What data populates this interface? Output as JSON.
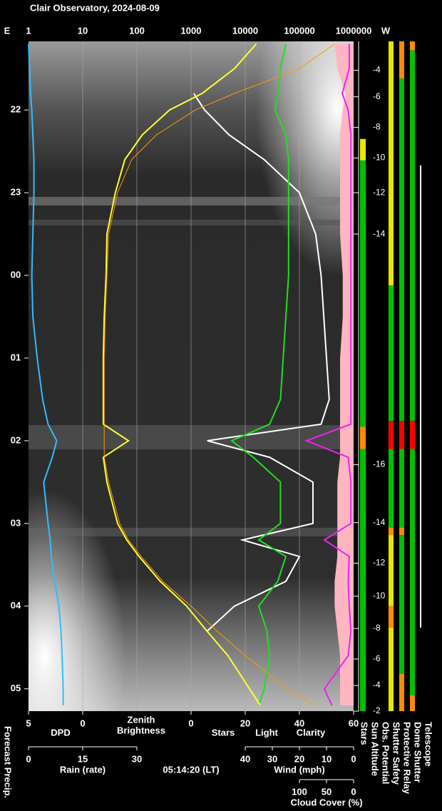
{
  "title": "Clair Observatory, 2024-08-09",
  "chart_data": {
    "type": "keogram",
    "east_label": "E",
    "west_label": "W",
    "log_x": true,
    "grid": true,
    "xlim": [
      1,
      1000000
    ],
    "xticks": [
      1,
      10,
      100,
      1000,
      10000,
      100000,
      1000000
    ],
    "ylim": [
      21.17,
      29.27
    ],
    "yticks": [
      22,
      23,
      {
        "value": 24,
        "label": "00"
      },
      {
        "value": 25,
        "label": "01"
      },
      {
        "value": 26,
        "label": "02"
      },
      {
        "value": 27,
        "label": "03"
      },
      {
        "value": 28,
        "label": "04"
      },
      {
        "value": 29,
        "label": "05"
      }
    ],
    "x": [
      21.2,
      21.5,
      21.8,
      22.0,
      22.3,
      22.6,
      23.0,
      23.5,
      24.0,
      24.5,
      25.0,
      25.5,
      25.8,
      26.0,
      26.2,
      26.5,
      27.0,
      27.2,
      27.4,
      27.7,
      28.0,
      28.3,
      28.6,
      29.0,
      29.2
    ],
    "series": [
      {
        "name": "Stars",
        "color": "#ffffff",
        "axis": "stars",
        "values": [
          null,
          null,
          1,
          5,
          14,
          27,
          40,
          46,
          48,
          49,
          50,
          51,
          48,
          6,
          29,
          45,
          45,
          19,
          40,
          35,
          16,
          6,
          null,
          null,
          null
        ]
      },
      {
        "name": "Clarity",
        "color": "#22dd22",
        "axis": "stars",
        "values": [
          35,
          33,
          32,
          31,
          35,
          36,
          36,
          36,
          36,
          35,
          34,
          33,
          29,
          15,
          23,
          33,
          33,
          25,
          35,
          32,
          25,
          28,
          29,
          27,
          25
        ]
      },
      {
        "name": "Light",
        "color": "#ffff33",
        "axis": "top",
        "values": [
          16000,
          6300,
          1600,
          400,
          126,
          60,
          40,
          28,
          27,
          25,
          24,
          24,
          24,
          70,
          24,
          28,
          44,
          65,
          110,
          270,
          830,
          1960,
          4800,
          12000,
          19000
        ]
      },
      {
        "color": "#ff9900",
        "axis": "top",
        "values": [
          450000,
          100000,
          6300,
          1200,
          230,
          80,
          44,
          30,
          28,
          26,
          25,
          25,
          25,
          25,
          25,
          30,
          48,
          70,
          120,
          300,
          1000,
          3000,
          10000,
          60000,
          200000
        ]
      },
      {
        "name": "DPD",
        "color": "#33bbff",
        "axis": "dpd",
        "values": [
          5,
          4.9,
          4.8,
          4.7,
          4.6,
          4.5,
          4.5,
          4.6,
          4.7,
          4.6,
          4.2,
          3.7,
          3.2,
          2.4,
          2.8,
          3.6,
          3.2,
          3.0,
          2.9,
          2.6,
          2.2,
          2.0,
          1.9,
          1.8,
          1.8
        ]
      },
      {
        "color": "#ffb6c1",
        "axis": "wind",
        "area": true,
        "values": [
          7,
          6,
          3,
          4,
          5,
          5,
          5,
          5,
          4,
          4,
          5,
          5,
          5,
          5,
          5,
          6,
          6,
          6,
          6,
          7,
          7,
          6,
          5,
          5,
          5
        ]
      },
      {
        "color": "#ee22ee",
        "axis": "cloud",
        "values": [
          8,
          8,
          21,
          10,
          5,
          5,
          5,
          5,
          5,
          5,
          5,
          5,
          5,
          87,
          10,
          5,
          5,
          54,
          8,
          10,
          8,
          5,
          10,
          54,
          40
        ]
      }
    ],
    "axes": {
      "dpd": {
        "lim": [
          5,
          0
        ],
        "ticks": [
          5,
          0
        ]
      },
      "stars": {
        "lim": [
          0,
          60
        ],
        "ticks": [
          0,
          20,
          40,
          60
        ]
      },
      "rain": {
        "label": "Rain (rate)",
        "color": "#33ccee",
        "lim": [
          0,
          30
        ],
        "ticks": [
          0,
          15,
          30
        ]
      },
      "wind": {
        "label": "Wind (mph)",
        "color": "#ffb6c1",
        "lim": [
          40,
          0
        ],
        "ticks": [
          40,
          30,
          20,
          10,
          0
        ]
      },
      "cloud": {
        "label": "Cloud Cover (%)",
        "color": "#ff33ff",
        "lim": [
          100,
          0
        ],
        "ticks": [
          100,
          50,
          0
        ]
      }
    },
    "zenith_label": [
      "Zenith",
      "Brightness"
    ],
    "zenith_color": "#ffff33",
    "time_label": "05:14:20 (LT)",
    "precip_label": "Forecast Precip.",
    "sun_altitude": {
      "ticks": [
        {
          "time": 21.52,
          "altitude": -4
        },
        {
          "time": 21.84,
          "altitude": -6
        },
        {
          "time": 22.21,
          "altitude": -8
        },
        {
          "time": 22.58,
          "altitude": -10
        },
        {
          "time": 23.0,
          "altitude": -12
        },
        {
          "time": 23.5,
          "altitude": -14
        },
        {
          "time": 26.29,
          "altitude": -16
        },
        {
          "time": 26.99,
          "altitude": -14
        },
        {
          "time": 27.48,
          "altitude": -12
        },
        {
          "time": 27.88,
          "altitude": -10
        },
        {
          "time": 28.27,
          "altitude": -8
        },
        {
          "time": 28.64,
          "altitude": -6
        },
        {
          "time": 28.96,
          "altitude": -4
        },
        {
          "time": 29.27,
          "altitude": -2
        }
      ]
    },
    "side_labels": [
      "Stars",
      "Sun Altitude",
      "Obs. Potential",
      "Shutter Safety",
      "Protective Relay",
      "Dome Shutter",
      "Telescope"
    ],
    "status_bars": [
      {
        "segments": [
          {
            "start": 22.35,
            "end": 22.61,
            "color": "#e6e600"
          },
          {
            "start": 22.61,
            "end": 25.83,
            "color": "#00c000"
          },
          {
            "start": 25.83,
            "end": 26.1,
            "color": "#ff8c00"
          },
          {
            "start": 26.1,
            "end": 29.27,
            "color": "#00c000"
          }
        ]
      },
      {
        "segments": [
          {
            "start": 21.17,
            "end": 24.12,
            "color": "#e6e600"
          },
          {
            "start": 24.12,
            "end": 25.76,
            "color": "#00c000"
          },
          {
            "start": 25.76,
            "end": 26.1,
            "color": "#ff0000"
          },
          {
            "start": 26.1,
            "end": 27.05,
            "color": "#00c000"
          },
          {
            "start": 27.05,
            "end": 27.14,
            "color": "#ff8c00"
          },
          {
            "start": 27.14,
            "end": 28.0,
            "color": "#e6e600"
          },
          {
            "start": 28.0,
            "end": 28.26,
            "color": "#ff8c00"
          },
          {
            "start": 28.26,
            "end": 29.27,
            "color": "#e6e600"
          }
        ]
      },
      {
        "segments": [
          {
            "start": 21.17,
            "end": 21.62,
            "color": "#ff8c00"
          },
          {
            "start": 21.62,
            "end": 25.76,
            "color": "#00c000"
          },
          {
            "start": 25.76,
            "end": 26.1,
            "color": "#ff0000"
          },
          {
            "start": 26.1,
            "end": 27.05,
            "color": "#00c000"
          },
          {
            "start": 27.05,
            "end": 27.14,
            "color": "#ff8c00"
          },
          {
            "start": 27.14,
            "end": 28.82,
            "color": "#00c000"
          },
          {
            "start": 28.82,
            "end": 29.27,
            "color": "#ff8c00"
          }
        ]
      },
      {
        "segments": [
          {
            "start": 21.17,
            "end": 21.28,
            "color": "#ff8c00"
          },
          {
            "start": 21.28,
            "end": 25.76,
            "color": "#00c000"
          },
          {
            "start": 25.76,
            "end": 26.1,
            "color": "#ff0000"
          },
          {
            "start": 26.1,
            "end": 29.08,
            "color": "#00c000"
          },
          {
            "start": 29.08,
            "end": 29.27,
            "color": "#ff8c00"
          }
        ]
      },
      {
        "segments": [
          {
            "start": 22.67,
            "end": 28.26,
            "color": "#ffffff"
          }
        ]
      }
    ]
  }
}
